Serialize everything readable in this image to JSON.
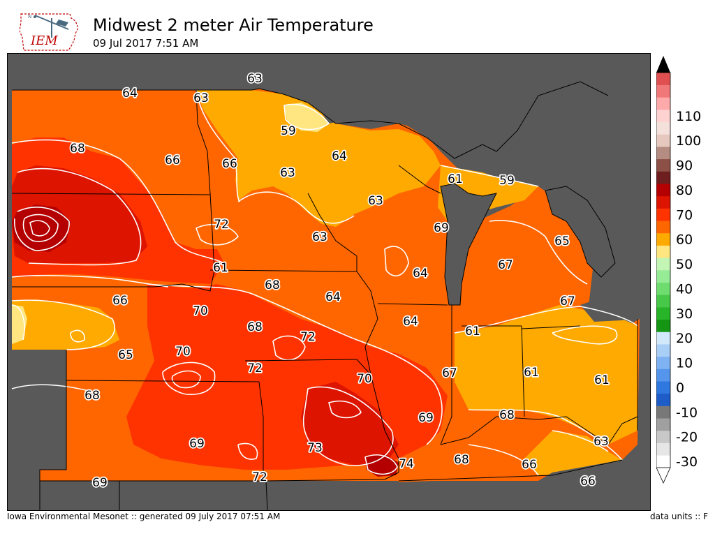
{
  "header": {
    "title": "Midwest 2 meter Air Temperature",
    "subtitle": "09 Jul 2017 7:51 AM",
    "logo_text": "IEM",
    "logo_icon": "iowa-outline-weathervane-icon"
  },
  "footer": {
    "credit": "Iowa Environmental Mesonet :: generated 09 July 2017 07:51 AM",
    "units": "data units :: F"
  },
  "map": {
    "outside_color": "#595959",
    "water_color": "#595959",
    "contour_color": "#ffffff",
    "border_color": "#000000"
  },
  "colorbar": {
    "tick_labels": [
      "-30",
      "-20",
      "-10",
      "0",
      "10",
      "20",
      "30",
      "40",
      "50",
      "60",
      "70",
      "80",
      "90",
      "100",
      "110"
    ],
    "bins": [
      {
        "lo": -30,
        "hi": -25,
        "color": "#ffffff"
      },
      {
        "lo": -25,
        "hi": -20,
        "color": "#e6e6e6"
      },
      {
        "lo": -20,
        "hi": -15,
        "color": "#c8c8c8"
      },
      {
        "lo": -15,
        "hi": -10,
        "color": "#a0a0a0"
      },
      {
        "lo": -10,
        "hi": -5,
        "color": "#787878"
      },
      {
        "lo": -5,
        "hi": 0,
        "color": "#1e5cc8"
      },
      {
        "lo": 0,
        "hi": 5,
        "color": "#2e78e0"
      },
      {
        "lo": 5,
        "hi": 10,
        "color": "#5596ec"
      },
      {
        "lo": 10,
        "hi": 15,
        "color": "#7fb2f2"
      },
      {
        "lo": 15,
        "hi": 20,
        "color": "#a9cff7"
      },
      {
        "lo": 20,
        "hi": 25,
        "color": "#d2e8fb"
      },
      {
        "lo": 25,
        "hi": 30,
        "color": "#149614"
      },
      {
        "lo": 30,
        "hi": 35,
        "color": "#28b428"
      },
      {
        "lo": 35,
        "hi": 40,
        "color": "#48c848"
      },
      {
        "lo": 40,
        "hi": 45,
        "color": "#6edc6e"
      },
      {
        "lo": 45,
        "hi": 50,
        "color": "#96eb96"
      },
      {
        "lo": 50,
        "hi": 55,
        "color": "#c3f5b4"
      },
      {
        "lo": 55,
        "hi": 60,
        "color": "#ffe680"
      },
      {
        "lo": 60,
        "hi": 65,
        "color": "#ffaa00"
      },
      {
        "lo": 65,
        "hi": 70,
        "color": "#ff6600"
      },
      {
        "lo": 70,
        "hi": 75,
        "color": "#ff3300"
      },
      {
        "lo": 75,
        "hi": 80,
        "color": "#dc1400"
      },
      {
        "lo": 80,
        "hi": 85,
        "color": "#b40000"
      },
      {
        "lo": 85,
        "hi": 90,
        "color": "#6e1e1e"
      },
      {
        "lo": 90,
        "hi": 95,
        "color": "#8c5046"
      },
      {
        "lo": 95,
        "hi": 100,
        "color": "#b48c82"
      },
      {
        "lo": 100,
        "hi": 105,
        "color": "#e6c8be"
      },
      {
        "lo": 105,
        "hi": 110,
        "color": "#f5e1dc"
      },
      {
        "lo": 110,
        "hi": 115,
        "color": "#ffd2d2"
      },
      {
        "lo": 115,
        "hi": 120,
        "color": "#ffaaaa"
      },
      {
        "lo": 120,
        "hi": 125,
        "color": "#f07878"
      },
      {
        "lo": 125,
        "hi": 130,
        "color": "#e05050"
      }
    ],
    "over_color": "#000000",
    "under_color": "#ffffff"
  },
  "contour_labels": [
    "63",
    "64",
    "63",
    "59",
    "68",
    "66",
    "66",
    "63",
    "64",
    "61",
    "59",
    "63",
    "72",
    "63",
    "69",
    "65",
    "61",
    "68",
    "64",
    "64",
    "67",
    "66",
    "70",
    "67",
    "68",
    "72",
    "64",
    "61",
    "65",
    "70",
    "72",
    "70",
    "67",
    "61",
    "61",
    "68",
    "69",
    "68",
    "69",
    "73",
    "74",
    "68",
    "66",
    "63",
    "69",
    "72",
    "66"
  ]
}
